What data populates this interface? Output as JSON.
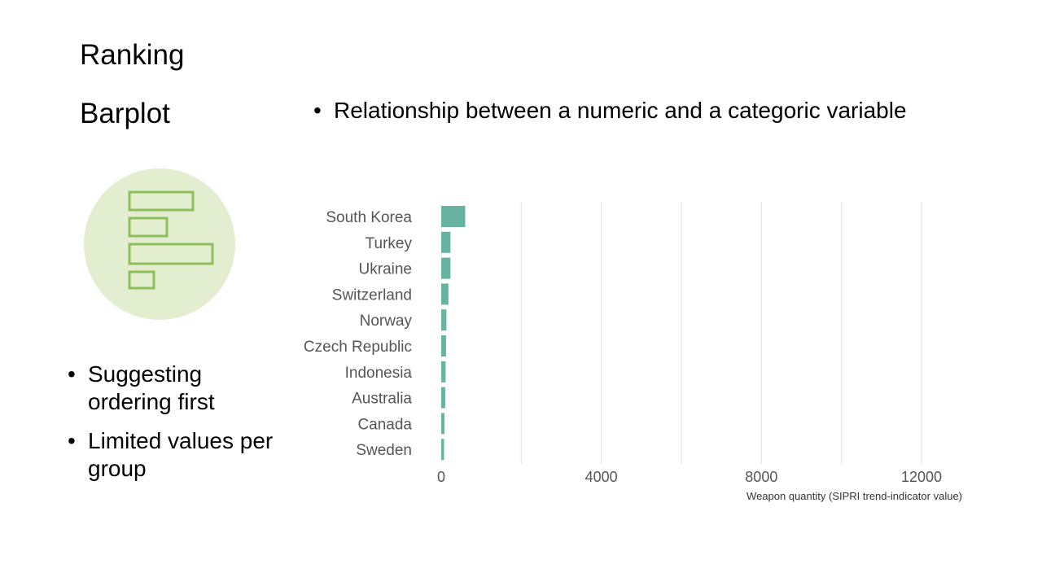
{
  "slide": {
    "title": "Ranking",
    "subtitle": "Barplot",
    "top_bullets": [
      "Relationship between a numeric and a categoric variable"
    ],
    "side_bullets": [
      "Suggesting ordering first",
      "Limited values per group"
    ]
  },
  "icon": {
    "name": "horizontal-barplot-icon",
    "circle_color": "#e3edcf",
    "bar_stroke_color": "#8dc05a"
  },
  "chart_data": {
    "type": "bar",
    "orientation": "horizontal",
    "categories": [
      "South Korea",
      "Turkey",
      "Ukraine",
      "Switzerland",
      "Norway",
      "Czech Republic",
      "Indonesia",
      "Australia",
      "Canada",
      "Sweden"
    ],
    "values": [
      600,
      230,
      230,
      180,
      130,
      120,
      110,
      100,
      80,
      70
    ],
    "xlabel": "Weapon quantity (SIPRI trend-indicator value)",
    "xticks": [
      0,
      4000,
      8000,
      12000
    ],
    "xlim": [
      0,
      12000
    ],
    "grid": "vertical",
    "bar_color": "#69b3a2"
  }
}
